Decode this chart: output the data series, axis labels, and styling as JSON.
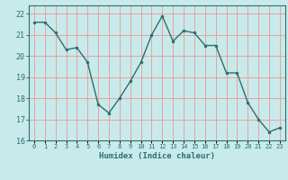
{
  "x": [
    0,
    1,
    2,
    3,
    4,
    5,
    6,
    7,
    8,
    9,
    10,
    11,
    12,
    13,
    14,
    15,
    16,
    17,
    18,
    19,
    20,
    21,
    22,
    23
  ],
  "y": [
    21.6,
    21.6,
    21.1,
    20.3,
    20.4,
    19.7,
    17.7,
    17.3,
    18.0,
    18.8,
    19.7,
    21.0,
    21.9,
    20.7,
    21.2,
    21.1,
    20.5,
    20.5,
    19.2,
    19.2,
    17.8,
    17.0,
    16.4,
    16.6
  ],
  "line_color": "#2d6e6e",
  "marker": "o",
  "marker_size": 2.0,
  "bg_color": "#c8eaea",
  "grid_color": "#e8a0a0",
  "xlabel": "Humidex (Indice chaleur)",
  "ylim": [
    16,
    22.4
  ],
  "xlim": [
    -0.5,
    23.5
  ],
  "yticks": [
    16,
    17,
    18,
    19,
    20,
    21,
    22
  ],
  "xtick_labels": [
    "0",
    "1",
    "2",
    "3",
    "4",
    "5",
    "6",
    "7",
    "8",
    "9",
    "10",
    "11",
    "12",
    "13",
    "14",
    "15",
    "16",
    "17",
    "18",
    "19",
    "20",
    "21",
    "22",
    "23"
  ]
}
